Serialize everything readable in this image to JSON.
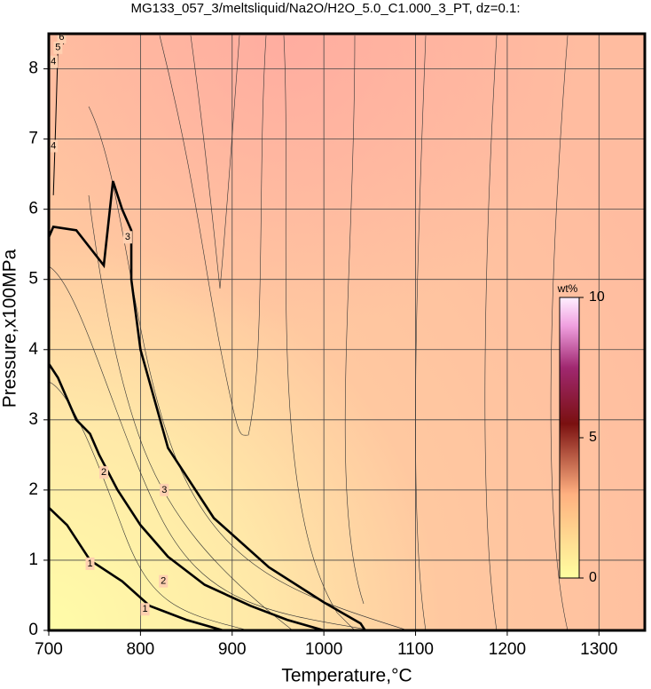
{
  "chart_data": {
    "type": "contour",
    "title": "MG133_057_3/meltsliquid/Na2O/H2O_5.0_C1.000_3_PT, dz=0.1:",
    "x_label": "Temperature,°C",
    "y_label": "Pressure,x100MPa",
    "xlim": [
      700,
      1350
    ],
    "ylim": [
      0,
      8.5
    ],
    "xticks": [
      700,
      800,
      900,
      1000,
      1100,
      1200,
      1300
    ],
    "yticks": [
      0,
      1,
      2,
      3,
      4,
      5,
      6,
      7,
      8
    ],
    "grid": true,
    "colorbar": {
      "label": "wt%",
      "lim": [
        0,
        10
      ],
      "ticks": [
        0,
        5,
        10
      ]
    },
    "contours": [
      {
        "level": 1,
        "x": [
          700,
          720,
          745,
          780,
          810,
          850,
          890
        ],
        "y": [
          1.75,
          1.5,
          1.0,
          0.7,
          0.35,
          0.15,
          0
        ],
        "label_at": [
          [
            745,
            0.95
          ],
          [
            805,
            0.3
          ]
        ]
      },
      {
        "level": 2,
        "x": [
          700,
          710,
          730,
          745,
          755,
          775,
          800,
          830,
          870,
          920,
          960,
          1000
        ],
        "y": [
          3.8,
          3.6,
          3.0,
          2.8,
          2.5,
          2.0,
          1.5,
          1.05,
          0.65,
          0.35,
          0.15,
          0
        ],
        "label_at": [
          [
            760,
            2.25
          ],
          [
            825,
            0.7
          ]
        ]
      },
      {
        "level": 3,
        "x": [
          700,
          705,
          730,
          760,
          770,
          780,
          790,
          790,
          800,
          830,
          880,
          940,
          1000,
          1040,
          1045
        ],
        "y": [
          5.6,
          5.75,
          5.7,
          5.2,
          6.4,
          6.0,
          5.7,
          5.0,
          4.0,
          2.6,
          1.6,
          0.9,
          0.4,
          0.1,
          0
        ],
        "label_at": [
          [
            786,
            5.6
          ],
          [
            826,
            2.0
          ]
        ]
      },
      {
        "level": 4,
        "x": [
          705,
          707,
          710
        ],
        "y": [
          6.2,
          7.0,
          8.3
        ],
        "label_at": [
          [
            705,
            6.9
          ],
          [
            705,
            8.1
          ]
        ]
      },
      {
        "level": 5,
        "x": [
          712,
          713
        ],
        "y": [
          8.3,
          8.5
        ],
        "label_at": [
          [
            710,
            8.3
          ]
        ]
      },
      {
        "level": 6,
        "x": [
          716,
          717
        ],
        "y": [
          8.35,
          8.5
        ],
        "label_at": [
          [
            714,
            8.45
          ]
        ]
      }
    ]
  }
}
